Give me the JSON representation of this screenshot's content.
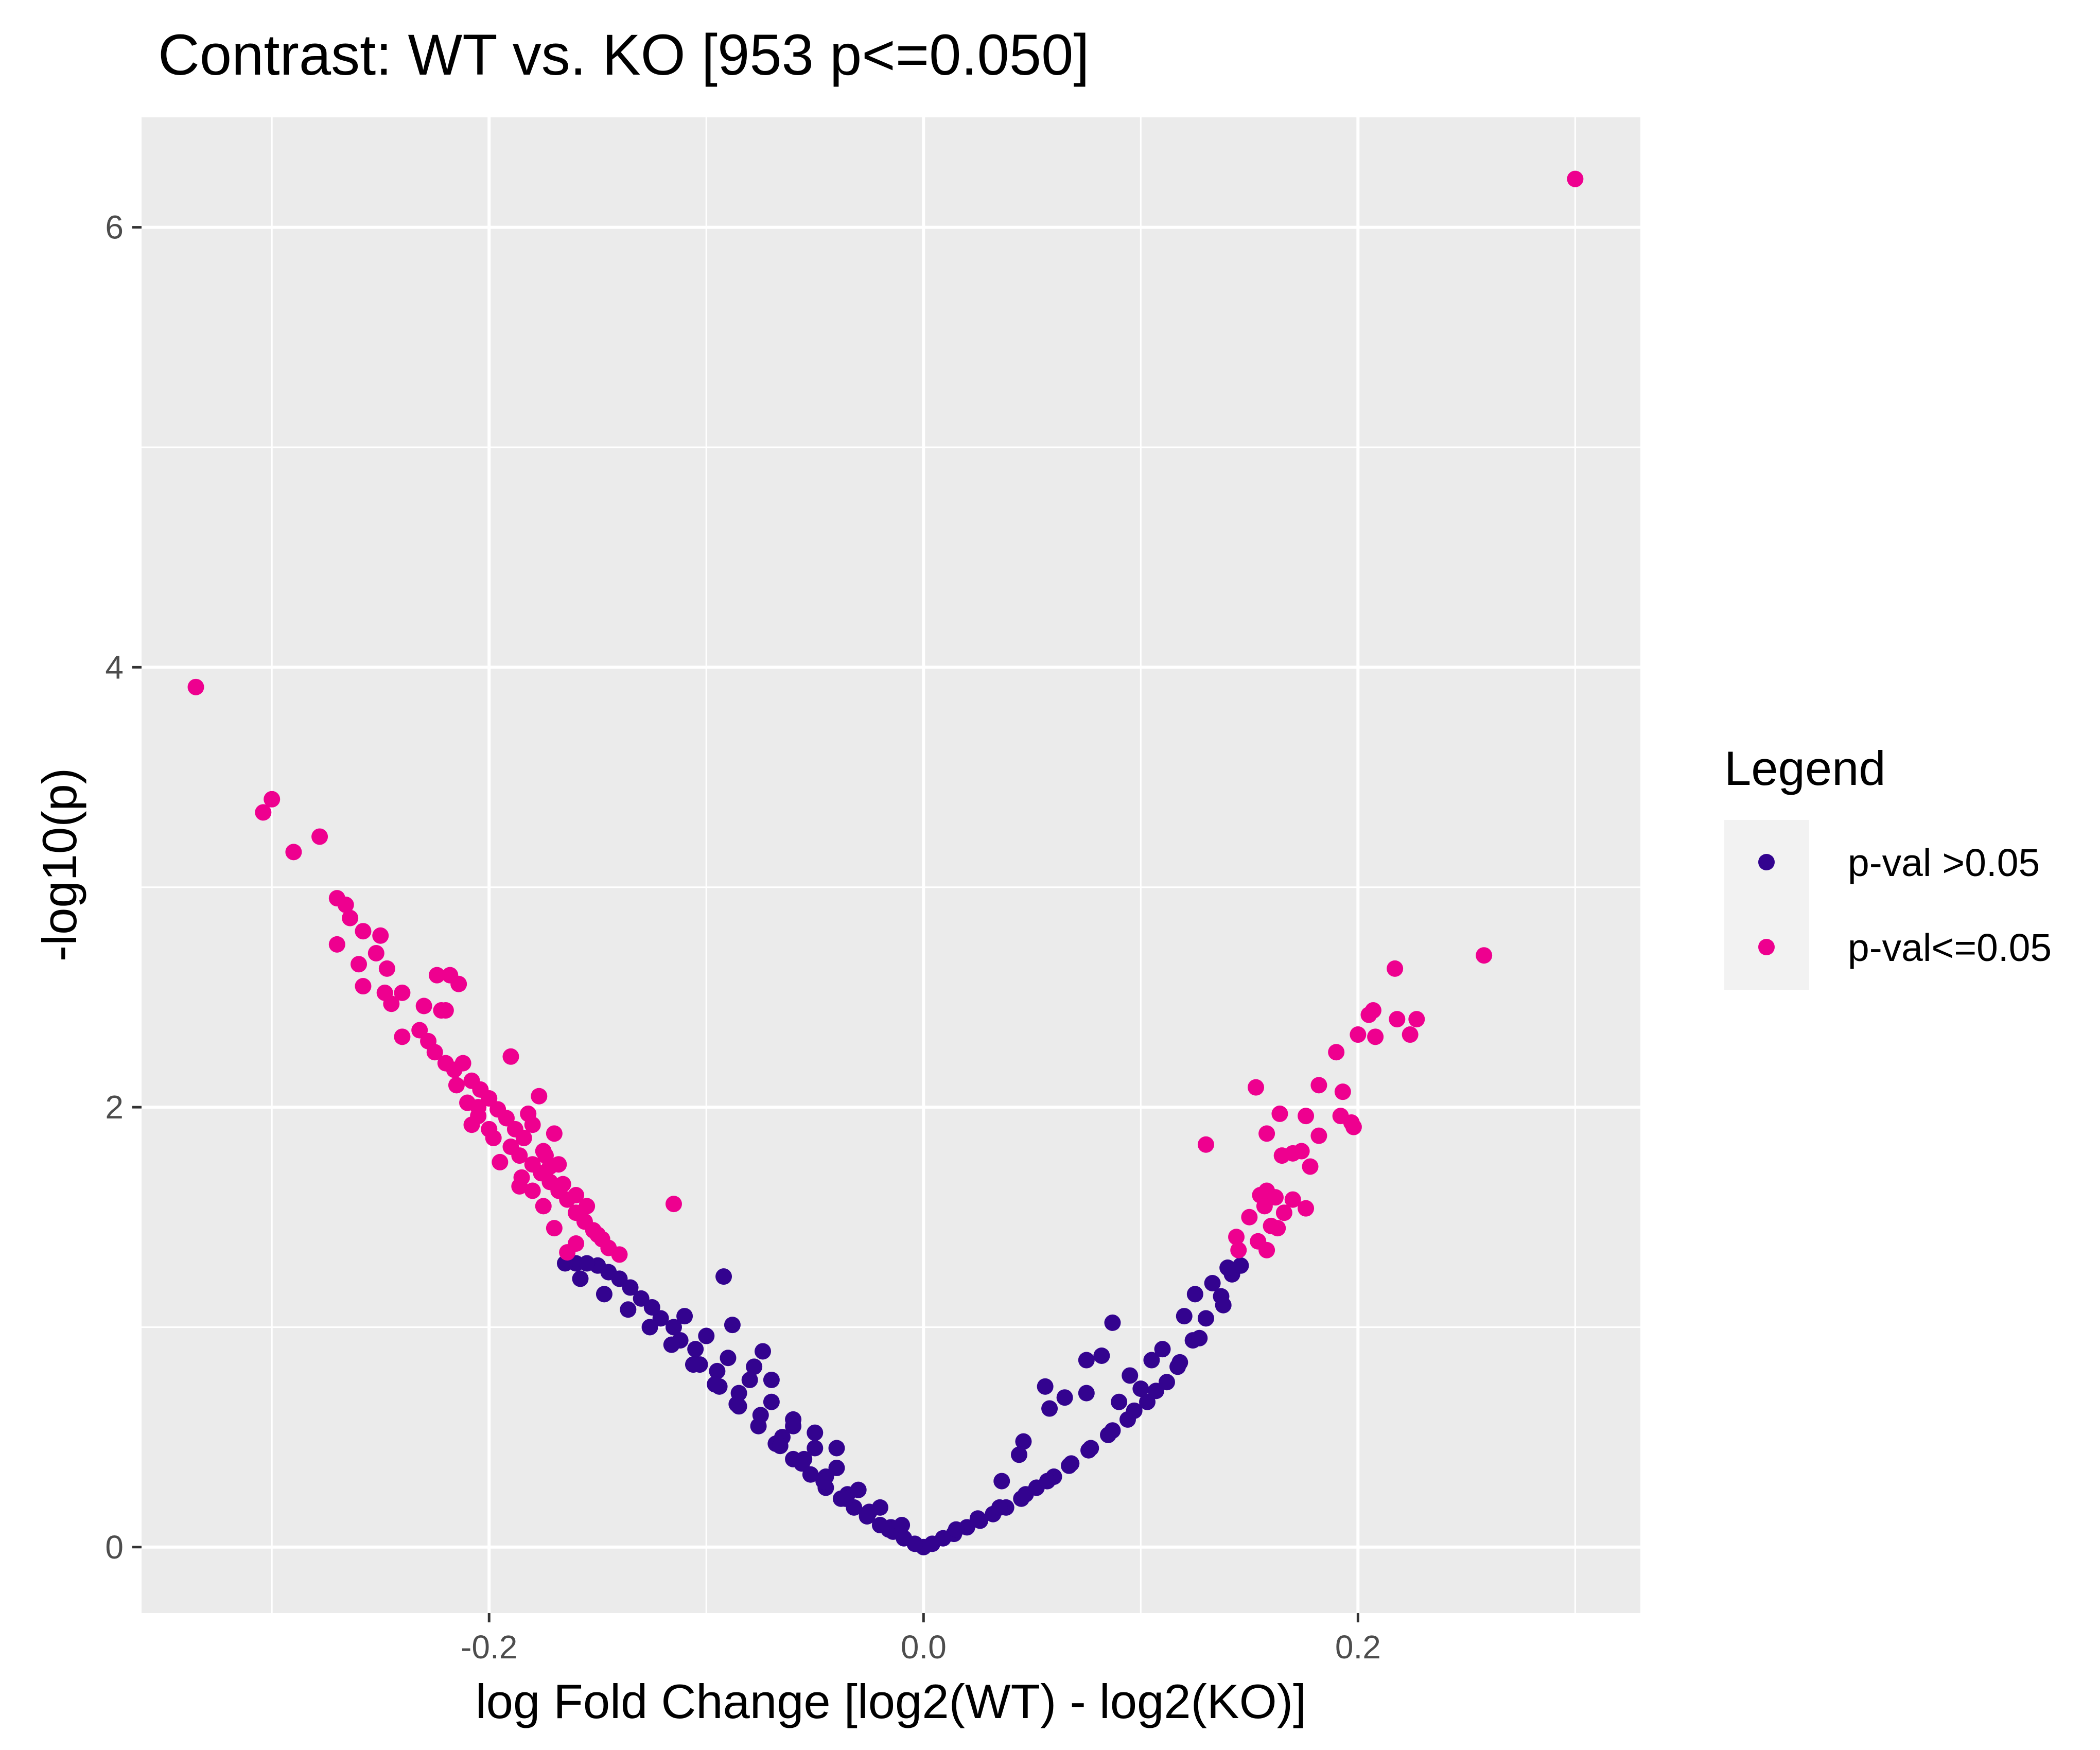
{
  "chart_data": {
    "type": "scatter",
    "title": "Contrast: WT vs. KO  [953 p<=0.050]",
    "xlabel": "log Fold Change [log2(WT) - log2(KO)]",
    "ylabel": "-log10(p)",
    "xlim": [
      -0.36,
      0.33
    ],
    "ylim": [
      -0.3,
      6.5
    ],
    "x_ticks": [
      -0.2,
      0.0,
      0.2
    ],
    "x_tick_labels": [
      "-0.2",
      "0.0",
      "0.2"
    ],
    "y_ticks": [
      0,
      2,
      4,
      6
    ],
    "y_tick_labels": [
      "0",
      "2",
      "4",
      "6"
    ],
    "grid": true,
    "legend": {
      "title": "Legend",
      "placement": "right",
      "entries": [
        {
          "label": "p-val >0.05",
          "color": "#33038f"
        },
        {
          "label": "p-val<=0.05",
          "color": "#ee008f"
        }
      ]
    },
    "series": [
      {
        "name": "p-val >0.05",
        "color": "#33038f",
        "points": [
          [
            0.0,
            0.0
          ],
          [
            -0.004,
            0.015
          ],
          [
            0.004,
            0.015
          ],
          [
            -0.009,
            0.04
          ],
          [
            0.009,
            0.04
          ],
          [
            -0.014,
            0.07
          ],
          [
            0.014,
            0.06
          ],
          [
            -0.02,
            0.1
          ],
          [
            0.02,
            0.09
          ],
          [
            -0.026,
            0.14
          ],
          [
            0.026,
            0.12
          ],
          [
            -0.032,
            0.18
          ],
          [
            0.032,
            0.15
          ],
          [
            -0.038,
            0.22
          ],
          [
            0.038,
            0.18
          ],
          [
            -0.045,
            0.27
          ],
          [
            0.045,
            0.22
          ],
          [
            -0.052,
            0.33
          ],
          [
            0.052,
            0.27
          ],
          [
            -0.06,
            0.4
          ],
          [
            0.06,
            0.32
          ],
          [
            -0.068,
            0.47
          ],
          [
            0.068,
            0.38
          ],
          [
            -0.076,
            0.55
          ],
          [
            0.076,
            0.44
          ],
          [
            -0.085,
            0.64
          ],
          [
            0.085,
            0.51
          ],
          [
            -0.094,
            0.73
          ],
          [
            0.094,
            0.58
          ],
          [
            -0.103,
            0.83
          ],
          [
            0.103,
            0.66
          ],
          [
            -0.112,
            0.94
          ],
          [
            0.112,
            0.75
          ],
          [
            -0.121,
            1.04
          ],
          [
            0.118,
            0.84
          ],
          [
            -0.13,
            1.13
          ],
          [
            0.124,
            0.94
          ],
          [
            -0.14,
            1.22
          ],
          [
            0.13,
            1.04
          ],
          [
            -0.15,
            1.28
          ],
          [
            0.137,
            1.14
          ],
          [
            -0.16,
            1.29
          ],
          [
            0.142,
            1.24
          ],
          [
            -0.165,
            1.29
          ],
          [
            0.146,
            1.28
          ],
          [
            -0.155,
            1.29
          ],
          [
            -0.145,
            1.25
          ],
          [
            -0.135,
            1.18
          ],
          [
            -0.125,
            1.09
          ],
          [
            -0.115,
            1.0
          ],
          [
            -0.105,
            0.9
          ],
          [
            -0.095,
            0.8
          ],
          [
            -0.085,
            0.7
          ],
          [
            -0.075,
            0.6
          ],
          [
            -0.065,
            0.5
          ],
          [
            -0.055,
            0.4
          ],
          [
            -0.045,
            0.32
          ],
          [
            -0.035,
            0.24
          ],
          [
            -0.025,
            0.16
          ],
          [
            -0.015,
            0.09
          ],
          [
            0.015,
            0.08
          ],
          [
            0.025,
            0.13
          ],
          [
            0.035,
            0.18
          ],
          [
            0.047,
            0.24
          ],
          [
            0.057,
            0.3
          ],
          [
            0.067,
            0.37
          ],
          [
            0.077,
            0.45
          ],
          [
            0.087,
            0.53
          ],
          [
            0.097,
            0.62
          ],
          [
            0.107,
            0.71
          ],
          [
            0.117,
            0.82
          ],
          [
            0.127,
            0.95
          ],
          [
            -0.092,
            1.23
          ],
          [
            -0.088,
            1.01
          ],
          [
            -0.074,
            0.89
          ],
          [
            -0.07,
            0.76
          ],
          [
            -0.078,
            0.82
          ],
          [
            -0.06,
            0.58
          ],
          [
            -0.05,
            0.52
          ],
          [
            -0.04,
            0.45
          ],
          [
            0.087,
            1.02
          ],
          [
            0.075,
            0.85
          ],
          [
            0.082,
            0.87
          ],
          [
            0.056,
            0.73
          ],
          [
            0.065,
            0.68
          ],
          [
            0.058,
            0.63
          ],
          [
            0.046,
            0.48
          ],
          [
            0.044,
            0.42
          ],
          [
            0.036,
            0.3
          ],
          [
            0.075,
            0.7
          ],
          [
            0.095,
            0.78
          ],
          [
            0.105,
            0.85
          ],
          [
            0.1,
            0.72
          ],
          [
            0.11,
            0.9
          ],
          [
            0.09,
            0.66
          ],
          [
            0.12,
            1.05
          ],
          [
            0.125,
            1.15
          ],
          [
            0.133,
            1.2
          ],
          [
            0.14,
            1.27
          ],
          [
            0.138,
            1.1
          ],
          [
            -0.158,
            1.22
          ],
          [
            -0.147,
            1.15
          ],
          [
            -0.136,
            1.08
          ],
          [
            -0.126,
            1.0
          ],
          [
            -0.116,
            0.92
          ],
          [
            -0.106,
            0.83
          ],
          [
            -0.096,
            0.74
          ],
          [
            -0.086,
            0.65
          ],
          [
            -0.066,
            0.46
          ],
          [
            -0.056,
            0.38
          ],
          [
            -0.046,
            0.3
          ],
          [
            -0.036,
            0.22
          ],
          [
            -0.026,
            0.15
          ],
          [
            -0.016,
            0.08
          ],
          [
            -0.11,
            1.05
          ],
          [
            -0.1,
            0.96
          ],
          [
            -0.09,
            0.86
          ],
          [
            -0.08,
            0.76
          ],
          [
            -0.07,
            0.66
          ],
          [
            -0.06,
            0.55
          ],
          [
            -0.05,
            0.45
          ],
          [
            -0.04,
            0.36
          ],
          [
            -0.03,
            0.26
          ],
          [
            -0.02,
            0.18
          ],
          [
            -0.01,
            0.1
          ]
        ]
      },
      {
        "name": "p-val<=0.05",
        "color": "#ee008f",
        "points": [
          [
            -0.335,
            3.91
          ],
          [
            -0.3,
            3.4
          ],
          [
            -0.304,
            3.34
          ],
          [
            -0.29,
            3.16
          ],
          [
            -0.278,
            3.23
          ],
          [
            -0.27,
            2.95
          ],
          [
            -0.266,
            2.92
          ],
          [
            -0.27,
            2.74
          ],
          [
            -0.264,
            2.86
          ],
          [
            -0.258,
            2.8
          ],
          [
            -0.252,
            2.7
          ],
          [
            -0.25,
            2.78
          ],
          [
            -0.26,
            2.65
          ],
          [
            -0.247,
            2.63
          ],
          [
            -0.258,
            2.55
          ],
          [
            -0.248,
            2.52
          ],
          [
            -0.245,
            2.47
          ],
          [
            -0.24,
            2.52
          ],
          [
            -0.23,
            2.46
          ],
          [
            -0.222,
            2.44
          ],
          [
            -0.218,
            2.6
          ],
          [
            -0.224,
            2.6
          ],
          [
            -0.214,
            2.56
          ],
          [
            -0.22,
            2.44
          ],
          [
            -0.19,
            2.23
          ],
          [
            -0.24,
            2.32
          ],
          [
            -0.232,
            2.35
          ],
          [
            -0.228,
            2.3
          ],
          [
            -0.225,
            2.25
          ],
          [
            -0.22,
            2.2
          ],
          [
            -0.216,
            2.17
          ],
          [
            -0.212,
            2.2
          ],
          [
            -0.208,
            2.12
          ],
          [
            -0.204,
            2.08
          ],
          [
            -0.2,
            2.04
          ],
          [
            -0.21,
            2.02
          ],
          [
            -0.196,
            1.99
          ],
          [
            -0.192,
            1.95
          ],
          [
            -0.188,
            1.9
          ],
          [
            -0.184,
            1.86
          ],
          [
            -0.2,
            1.9
          ],
          [
            -0.205,
            1.96
          ],
          [
            -0.19,
            1.82
          ],
          [
            -0.186,
            1.78
          ],
          [
            -0.18,
            1.74
          ],
          [
            -0.176,
            1.7
          ],
          [
            -0.172,
            1.66
          ],
          [
            -0.168,
            1.62
          ],
          [
            -0.164,
            1.58
          ],
          [
            -0.16,
            1.52
          ],
          [
            -0.156,
            1.48
          ],
          [
            -0.152,
            1.44
          ],
          [
            -0.148,
            1.4
          ],
          [
            -0.164,
            1.34
          ],
          [
            -0.16,
            1.38
          ],
          [
            -0.17,
            1.45
          ],
          [
            -0.175,
            1.55
          ],
          [
            -0.18,
            1.62
          ],
          [
            -0.185,
            1.68
          ],
          [
            -0.195,
            1.75
          ],
          [
            -0.17,
            1.88
          ],
          [
            -0.175,
            1.8
          ],
          [
            -0.18,
            1.92
          ],
          [
            -0.172,
            1.73
          ],
          [
            -0.166,
            1.65
          ],
          [
            -0.16,
            1.6
          ],
          [
            -0.155,
            1.55
          ],
          [
            -0.15,
            1.42
          ],
          [
            -0.145,
            1.36
          ],
          [
            -0.14,
            1.33
          ],
          [
            -0.215,
            2.1
          ],
          [
            -0.205,
            2.0
          ],
          [
            -0.182,
            1.97
          ],
          [
            -0.177,
            2.05
          ],
          [
            -0.174,
            1.78
          ],
          [
            -0.115,
            1.56
          ],
          [
            -0.168,
            1.74
          ],
          [
            -0.186,
            1.64
          ],
          [
            -0.198,
            1.86
          ],
          [
            -0.208,
            1.92
          ],
          [
            0.3,
            6.22
          ],
          [
            0.258,
            2.69
          ],
          [
            0.217,
            2.63
          ],
          [
            0.207,
            2.44
          ],
          [
            0.205,
            2.42
          ],
          [
            0.218,
            2.4
          ],
          [
            0.227,
            2.4
          ],
          [
            0.2,
            2.33
          ],
          [
            0.208,
            2.32
          ],
          [
            0.224,
            2.33
          ],
          [
            0.19,
            2.25
          ],
          [
            0.153,
            2.09
          ],
          [
            0.182,
            2.1
          ],
          [
            0.193,
            2.07
          ],
          [
            0.164,
            1.97
          ],
          [
            0.176,
            1.96
          ],
          [
            0.192,
            1.96
          ],
          [
            0.197,
            1.93
          ],
          [
            0.198,
            1.91
          ],
          [
            0.182,
            1.87
          ],
          [
            0.158,
            1.88
          ],
          [
            0.13,
            1.83
          ],
          [
            0.17,
            1.79
          ],
          [
            0.174,
            1.8
          ],
          [
            0.165,
            1.78
          ],
          [
            0.178,
            1.73
          ],
          [
            0.158,
            1.62
          ],
          [
            0.162,
            1.59
          ],
          [
            0.155,
            1.6
          ],
          [
            0.17,
            1.58
          ],
          [
            0.176,
            1.54
          ],
          [
            0.15,
            1.5
          ],
          [
            0.157,
            1.55
          ],
          [
            0.163,
            1.45
          ],
          [
            0.144,
            1.41
          ],
          [
            0.154,
            1.39
          ],
          [
            0.158,
            1.35
          ],
          [
            0.145,
            1.35
          ],
          [
            0.166,
            1.52
          ],
          [
            0.16,
            1.46
          ]
        ]
      }
    ]
  }
}
